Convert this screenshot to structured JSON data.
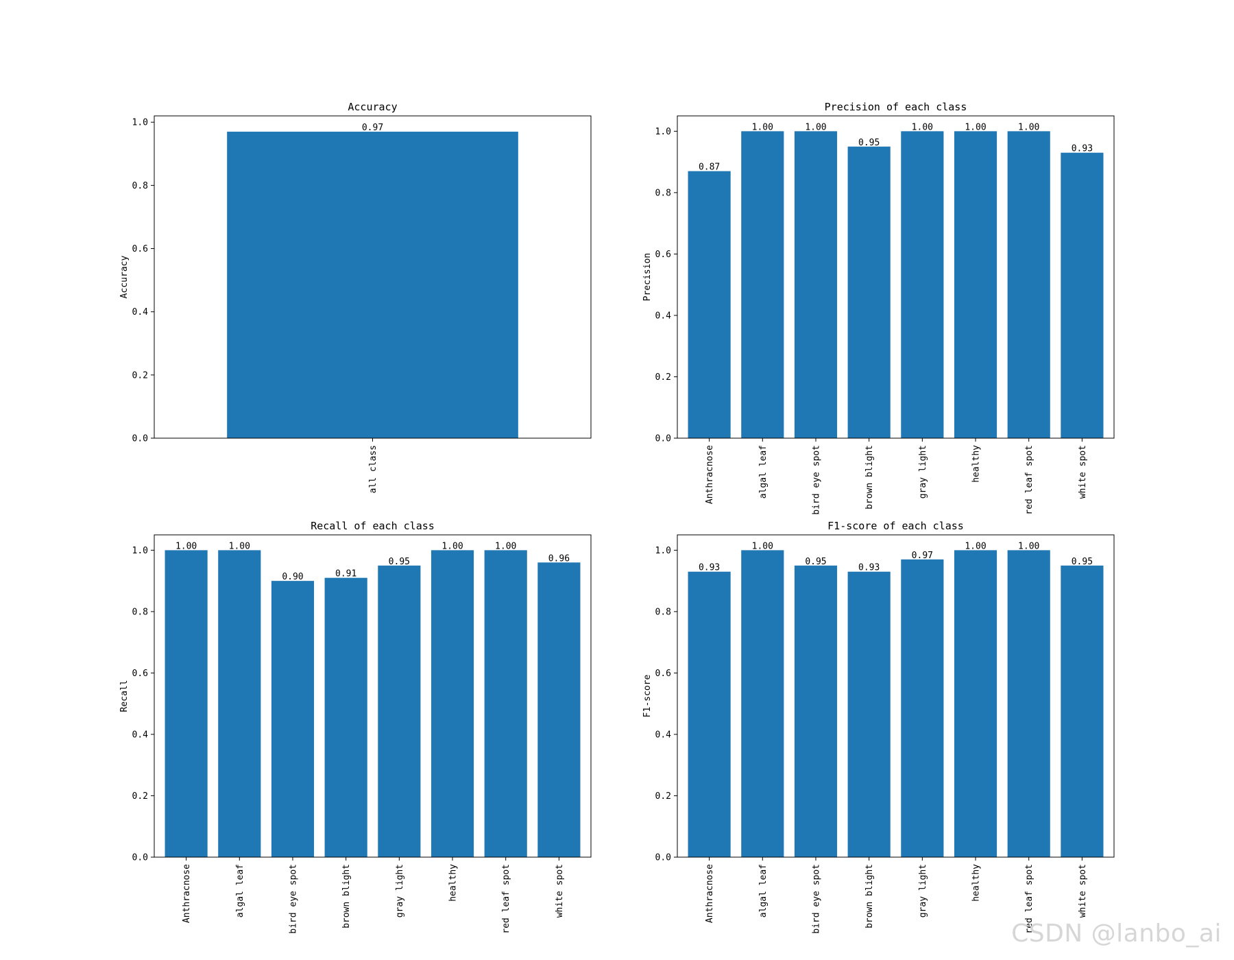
{
  "chart_data": [
    {
      "type": "bar",
      "title": "Accuracy",
      "ylabel": "Accuracy",
      "categories": [
        "all class"
      ],
      "values": [
        0.97
      ],
      "data_labels": [
        "0.97"
      ],
      "ylim": [
        0,
        1.02
      ],
      "yticks": [
        0.0,
        0.2,
        0.4,
        0.6,
        0.8,
        1.0
      ],
      "ytick_labels": [
        "0.0",
        "0.2",
        "0.4",
        "0.6",
        "0.8",
        "1.0"
      ],
      "color": "#1f77b4",
      "grid": false
    },
    {
      "type": "bar",
      "title": "Precision of each class",
      "ylabel": "Precision",
      "categories": [
        "Anthracnose",
        "algal leaf",
        "bird eye spot",
        "brown blight",
        "gray light",
        "healthy",
        "red leaf spot",
        "white spot"
      ],
      "values": [
        0.87,
        1.0,
        1.0,
        0.95,
        1.0,
        1.0,
        1.0,
        0.93
      ],
      "data_labels": [
        "0.87",
        "1.00",
        "1.00",
        "0.95",
        "1.00",
        "1.00",
        "1.00",
        "0.93"
      ],
      "ylim": [
        0,
        1.05
      ],
      "yticks": [
        0.0,
        0.2,
        0.4,
        0.6,
        0.8,
        1.0
      ],
      "ytick_labels": [
        "0.0",
        "0.2",
        "0.4",
        "0.6",
        "0.8",
        "1.0"
      ],
      "color": "#1f77b4",
      "grid": false
    },
    {
      "type": "bar",
      "title": "Recall of each class",
      "ylabel": "Recall",
      "categories": [
        "Anthracnose",
        "algal leaf",
        "bird eye spot",
        "brown blight",
        "gray light",
        "healthy",
        "red leaf spot",
        "white spot"
      ],
      "values": [
        1.0,
        1.0,
        0.9,
        0.91,
        0.95,
        1.0,
        1.0,
        0.96
      ],
      "data_labels": [
        "1.00",
        "1.00",
        "0.90",
        "0.91",
        "0.95",
        "1.00",
        "1.00",
        "0.96"
      ],
      "ylim": [
        0,
        1.05
      ],
      "yticks": [
        0.0,
        0.2,
        0.4,
        0.6,
        0.8,
        1.0
      ],
      "ytick_labels": [
        "0.0",
        "0.2",
        "0.4",
        "0.6",
        "0.8",
        "1.0"
      ],
      "color": "#1f77b4",
      "grid": false
    },
    {
      "type": "bar",
      "title": "F1-score of each class",
      "ylabel": "F1-score",
      "categories": [
        "Anthracnose",
        "algal leaf",
        "bird eye spot",
        "brown blight",
        "gray light",
        "healthy",
        "red leaf spot",
        "white spot"
      ],
      "values": [
        0.93,
        1.0,
        0.95,
        0.93,
        0.97,
        1.0,
        1.0,
        0.95
      ],
      "data_labels": [
        "0.93",
        "1.00",
        "0.95",
        "0.93",
        "0.97",
        "1.00",
        "1.00",
        "0.95"
      ],
      "ylim": [
        0,
        1.05
      ],
      "yticks": [
        0.0,
        0.2,
        0.4,
        0.6,
        0.8,
        1.0
      ],
      "ytick_labels": [
        "0.0",
        "0.2",
        "0.4",
        "0.6",
        "0.8",
        "1.0"
      ],
      "color": "#1f77b4",
      "grid": false
    }
  ],
  "watermark": "CSDN @lanbo_ai"
}
